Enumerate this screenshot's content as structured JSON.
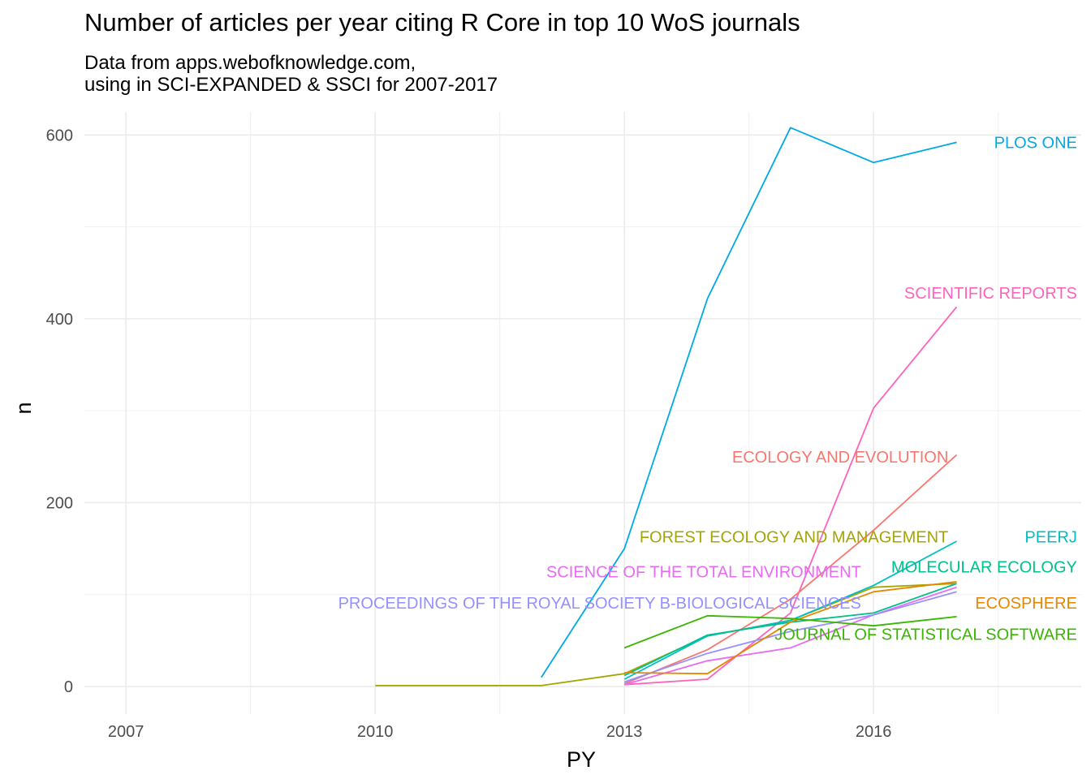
{
  "title": "Number of articles per year citing R Core in top 10 WoS journals",
  "subtitle_lines": [
    "Data from apps.webofknowledge.com,",
    "using in SCI-EXPANDED & SSCI for 2007-2017"
  ],
  "chart_data": {
    "type": "line",
    "title": "Number of articles per year citing R Core in top 10 WoS journals",
    "xlabel": "PY",
    "ylabel": "n",
    "xlim": [
      2006.5,
      2018.5
    ],
    "ylim": [
      -30,
      625
    ],
    "x_ticks": [
      2007,
      2010,
      2013,
      2016
    ],
    "y_ticks": [
      0,
      200,
      400,
      600
    ],
    "grid": true,
    "legend": "direct labels at line ends",
    "series": [
      {
        "name": "PLOS ONE",
        "color": "#00A9E6",
        "label_anchor": "end",
        "label_x": 2018.45,
        "label_y": 592,
        "x": [
          2012,
          2013,
          2014,
          2015,
          2016,
          2017
        ],
        "y": [
          10,
          150,
          422,
          608,
          570,
          592
        ]
      },
      {
        "name": "SCIENTIFIC REPORTS",
        "color": "#FF62BC",
        "label_anchor": "end",
        "label_x": 2018.45,
        "label_y": 428,
        "x": [
          2013,
          2014,
          2015,
          2016,
          2017
        ],
        "y": [
          2,
          8,
          80,
          303,
          413
        ]
      },
      {
        "name": "ECOLOGY AND EVOLUTION",
        "color": "#F8766D",
        "label_anchor": "end",
        "label_x": 2016.9,
        "label_y": 250,
        "x": [
          2013,
          2014,
          2015,
          2016,
          2017
        ],
        "y": [
          3,
          40,
          95,
          170,
          252
        ]
      },
      {
        "name": "FOREST ECOLOGY AND MANAGEMENT",
        "color": "#A3A500",
        "label_anchor": "end",
        "label_x": 2016.9,
        "label_y": 163,
        "x": [
          2010,
          2011,
          2012,
          2013,
          2014,
          2015,
          2016,
          2017
        ],
        "y": [
          1,
          1,
          1,
          14,
          55,
          72,
          108,
          112
        ]
      },
      {
        "name": "PEERJ",
        "color": "#00BFC4",
        "label_anchor": "end",
        "label_x": 2018.45,
        "label_y": 163,
        "x": [
          2013,
          2014,
          2015,
          2016,
          2017
        ],
        "y": [
          8,
          55,
          72,
          110,
          158
        ]
      },
      {
        "name": "MOLECULAR ECOLOGY",
        "color": "#00C08B",
        "label_anchor": "end",
        "label_x": 2018.45,
        "label_y": 130,
        "x": [
          2013,
          2014,
          2015,
          2016,
          2017
        ],
        "y": [
          12,
          56,
          70,
          80,
          112
        ]
      },
      {
        "name": "SCIENCE OF THE TOTAL ENVIRONMENT",
        "color": "#E76BF3",
        "label_anchor": "end",
        "label_x": 2015.85,
        "label_y": 125,
        "x": [
          2013,
          2014,
          2015,
          2016,
          2017
        ],
        "y": [
          2,
          28,
          42,
          78,
          108
        ]
      },
      {
        "name": "PROCEEDINGS OF THE ROYAL SOCIETY B-BIOLOGICAL SCIENCES",
        "color": "#9590FF",
        "label_anchor": "end",
        "label_x": 2015.85,
        "label_y": 91,
        "x": [
          2013,
          2014,
          2015,
          2016,
          2017
        ],
        "y": [
          5,
          36,
          60,
          78,
          103
        ]
      },
      {
        "name": "ECOSPHERE",
        "color": "#E58700",
        "label_anchor": "end",
        "label_x": 2018.45,
        "label_y": 91,
        "x": [
          2013,
          2014,
          2015,
          2016,
          2017
        ],
        "y": [
          15,
          14,
          70,
          103,
          114
        ]
      },
      {
        "name": "JOURNAL OF STATISTICAL SOFTWARE",
        "color": "#39B600",
        "label_anchor": "end",
        "label_x": 2018.45,
        "label_y": 57,
        "x": [
          2013,
          2014,
          2015,
          2016,
          2017
        ],
        "y": [
          42,
          77,
          74,
          66,
          76
        ]
      }
    ]
  }
}
